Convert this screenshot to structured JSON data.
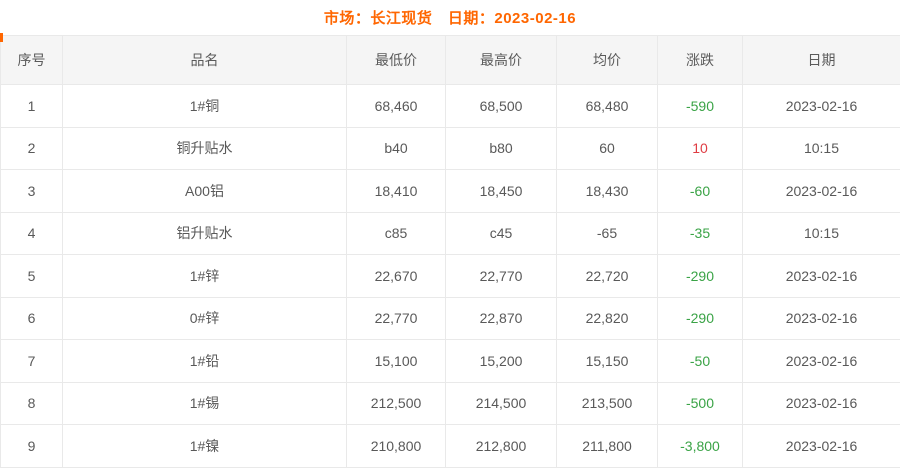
{
  "page": {
    "title": "市场：长江现货　日期：2023-02-16"
  },
  "colors": {
    "accent_orange": "#ff6600",
    "change_down_green": "#3aa346",
    "change_up_red": "#df3c43",
    "header_bg": "#f5f5f5",
    "cell_text": "#595959",
    "border": "#e9e9e9"
  },
  "table": {
    "headers": {
      "no": "序号",
      "name": "品名",
      "low": "最低价",
      "high": "最高价",
      "avg": "均价",
      "change": "涨跌",
      "date": "日期"
    },
    "rows": [
      {
        "no": "1",
        "name": "1#铜",
        "low": "68,460",
        "high": "68,500",
        "avg": "68,480",
        "change": "-590",
        "change_dir": "down",
        "date": "2023-02-16"
      },
      {
        "no": "2",
        "name": "铜升贴水",
        "low": "b40",
        "high": "b80",
        "avg": "60",
        "change": "10",
        "change_dir": "up",
        "date": "10:15"
      },
      {
        "no": "3",
        "name": "A00铝",
        "low": "18,410",
        "high": "18,450",
        "avg": "18,430",
        "change": "-60",
        "change_dir": "down",
        "date": "2023-02-16"
      },
      {
        "no": "4",
        "name": "铝升贴水",
        "low": "c85",
        "high": "c45",
        "avg": "-65",
        "change": "-35",
        "change_dir": "down",
        "date": "10:15"
      },
      {
        "no": "5",
        "name": "1#锌",
        "low": "22,670",
        "high": "22,770",
        "avg": "22,720",
        "change": "-290",
        "change_dir": "down",
        "date": "2023-02-16"
      },
      {
        "no": "6",
        "name": "0#锌",
        "low": "22,770",
        "high": "22,870",
        "avg": "22,820",
        "change": "-290",
        "change_dir": "down",
        "date": "2023-02-16"
      },
      {
        "no": "7",
        "name": "1#铅",
        "low": "15,100",
        "high": "15,200",
        "avg": "15,150",
        "change": "-50",
        "change_dir": "down",
        "date": "2023-02-16"
      },
      {
        "no": "8",
        "name": "1#锡",
        "low": "212,500",
        "high": "214,500",
        "avg": "213,500",
        "change": "-500",
        "change_dir": "down",
        "date": "2023-02-16"
      },
      {
        "no": "9",
        "name": "1#镍",
        "low": "210,800",
        "high": "212,800",
        "avg": "211,800",
        "change": "-3,800",
        "change_dir": "down",
        "date": "2023-02-16"
      }
    ]
  }
}
